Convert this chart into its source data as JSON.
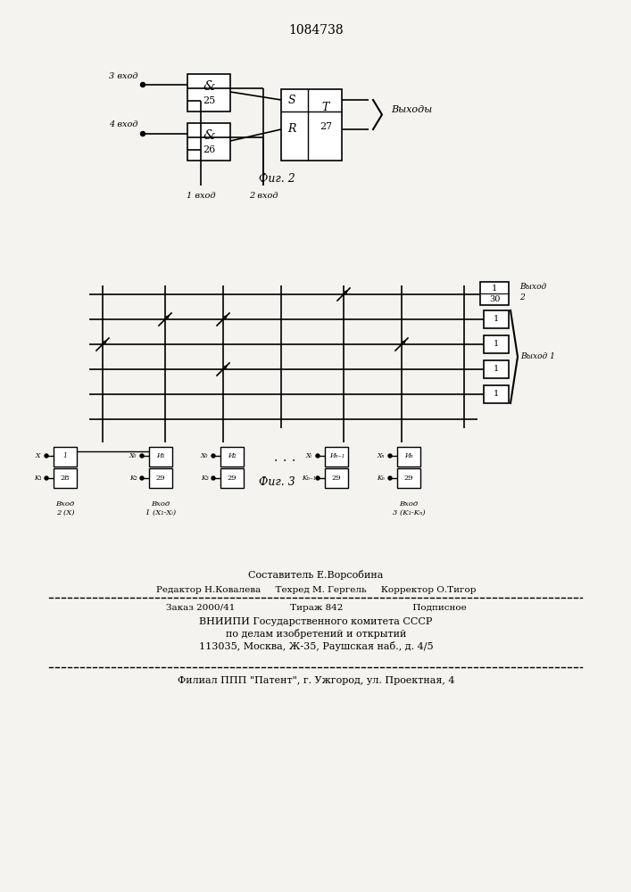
{
  "patent_number": "1084738",
  "bg_color": "#f5f3ef",
  "fig2_caption": "Фиг. 2",
  "fig3_caption": "Фиг. 3",
  "footer": {
    "composer": "Составитель Е.Ворсобина",
    "editor_line": "Редактор Н.Ковалева     Техред М. Гергель     Корректор О.Тигор",
    "order_line": "Заказ 2000/41                   Тираж 842                        Подписное",
    "vnipi_line1": "ВНИИПИ Государственного комитета СССР",
    "vnipi_line2": "по делам изобретений и открытий",
    "vnipi_line3": "113035, Москва, Ж-35, Раушская наб., д. 4/5",
    "filial": "Филиал ППП \"Патент\", г. Ужгород, ул. Проектная, 4"
  }
}
